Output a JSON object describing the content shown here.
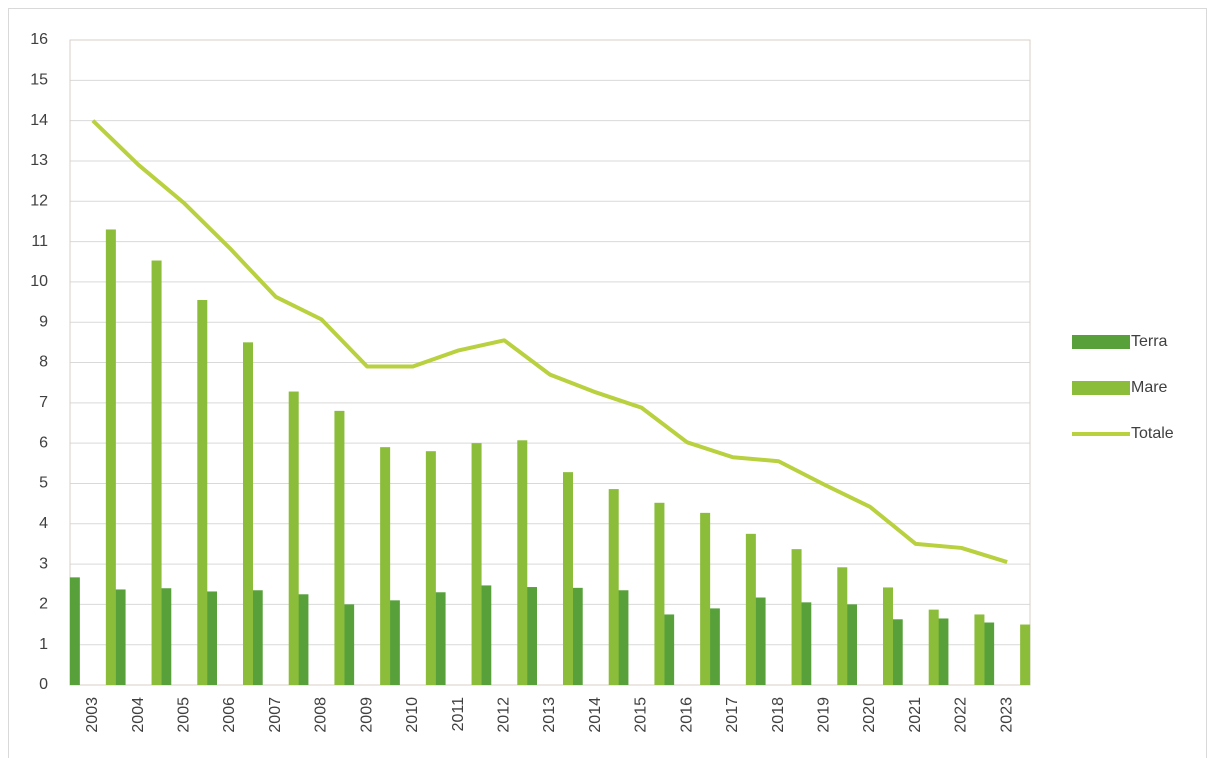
{
  "chart_data": {
    "type": "bar",
    "categories": [
      "2003",
      "2004",
      "2005",
      "2006",
      "2007",
      "2008",
      "2009",
      "2010",
      "2011",
      "2012",
      "2013",
      "2014",
      "2015",
      "2016",
      "2017",
      "2018",
      "2019",
      "2020",
      "2021",
      "2022",
      "2023"
    ],
    "series": [
      {
        "name": "Terra",
        "type": "bar",
        "color": "#57a03a",
        "values": [
          2.67,
          2.37,
          2.4,
          2.32,
          2.35,
          2.25,
          2.0,
          2.1,
          2.3,
          2.47,
          2.43,
          2.41,
          2.35,
          1.75,
          1.9,
          2.17,
          2.05,
          2.0,
          1.63,
          1.65,
          1.55
        ]
      },
      {
        "name": "Mare",
        "type": "bar",
        "color": "#8bbd3a",
        "values": [
          11.3,
          10.53,
          9.55,
          8.5,
          7.28,
          6.8,
          5.9,
          5.8,
          6.0,
          6.07,
          5.28,
          4.86,
          4.52,
          4.27,
          3.75,
          3.37,
          2.92,
          2.42,
          1.87,
          1.75,
          1.5
        ]
      },
      {
        "name": "Totale",
        "type": "line",
        "color": "#b9d03f",
        "values": [
          14.0,
          12.9,
          11.95,
          10.83,
          9.63,
          9.07,
          7.9,
          7.9,
          8.3,
          8.55,
          7.7,
          7.26,
          6.88,
          6.02,
          5.65,
          5.55,
          4.97,
          4.42,
          3.5,
          3.4,
          3.05
        ]
      }
    ],
    "ylim": [
      0,
      16
    ],
    "yticks": [
      0,
      1,
      2,
      3,
      4,
      5,
      6,
      7,
      8,
      9,
      10,
      11,
      12,
      13,
      14,
      15,
      16
    ],
    "grid": true,
    "legend": "right"
  }
}
